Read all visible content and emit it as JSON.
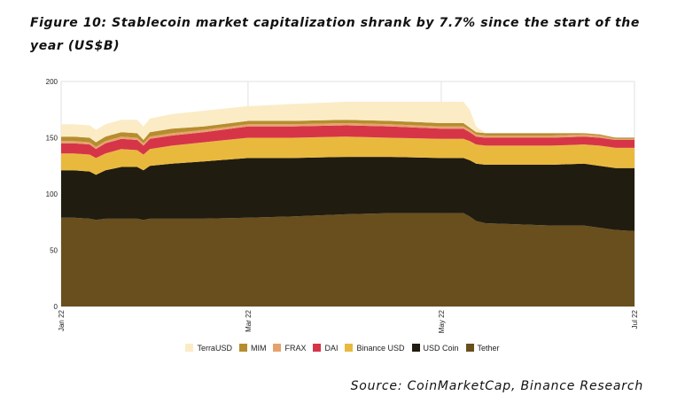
{
  "figure": {
    "title": "Figure 10: Stablecoin market capitalization shrank by 7.7% since the start of the year (US$B)",
    "source": "Source: CoinMarketCap, Binance Research"
  },
  "chart_data": {
    "type": "area",
    "stacked": true,
    "ylim": [
      0,
      200
    ],
    "yticks": [
      0,
      50,
      100,
      150,
      200
    ],
    "x": [
      "2022-01-01",
      "2022-01-05",
      "2022-01-10",
      "2022-01-12",
      "2022-01-15",
      "2022-01-20",
      "2022-01-25",
      "2022-01-27",
      "2022-01-29",
      "2022-02-05",
      "2022-02-15",
      "2022-03-01",
      "2022-03-15",
      "2022-04-01",
      "2022-04-15",
      "2022-05-01",
      "2022-05-05",
      "2022-05-08",
      "2022-05-10",
      "2022-05-12",
      "2022-05-15",
      "2022-05-25",
      "2022-06-05",
      "2022-06-15",
      "2022-06-20",
      "2022-06-25",
      "2022-07-01"
    ],
    "xticks": [
      {
        "date": "2022-01-01",
        "label": "Jan 22"
      },
      {
        "date": "2022-03-01",
        "label": "Mar 22"
      },
      {
        "date": "2022-05-01",
        "label": "May 22"
      },
      {
        "date": "2022-07-01",
        "label": "Jul 22"
      }
    ],
    "series": [
      {
        "name": "Tether",
        "color": "#694f1d",
        "values": [
          79,
          79,
          78,
          77,
          78,
          78,
          78,
          77,
          78,
          78,
          78,
          79,
          80,
          82,
          83,
          83,
          83,
          83,
          80,
          76,
          74,
          73,
          72,
          72,
          70,
          68,
          67
        ]
      },
      {
        "name": "USD Coin",
        "color": "#211c10",
        "values": [
          42,
          42,
          42,
          40,
          43,
          46,
          46,
          44,
          47,
          49,
          51,
          53,
          52,
          51,
          50,
          49,
          49,
          49,
          50,
          51,
          52,
          53,
          54,
          55,
          55,
          55,
          56
        ]
      },
      {
        "name": "Binance USD",
        "color": "#e9b93e",
        "values": [
          15,
          15,
          15,
          15,
          15,
          16,
          15,
          14,
          15,
          16,
          17,
          18,
          18,
          18,
          17,
          17,
          17,
          17,
          17,
          17,
          17,
          17,
          17,
          17,
          18,
          18,
          18
        ]
      },
      {
        "name": "DAI",
        "color": "#d63548",
        "values": [
          9,
          9,
          9,
          8,
          9,
          9,
          9,
          8,
          9,
          9,
          9,
          10,
          10,
          10,
          10,
          9,
          9,
          9,
          8,
          7,
          7,
          7,
          7,
          7,
          7,
          7,
          7
        ]
      },
      {
        "name": "FRAX",
        "color": "#e6a26c",
        "values": [
          2,
          2,
          2,
          2,
          2,
          2,
          2,
          2,
          2,
          2,
          2,
          2,
          2,
          2,
          2,
          2,
          2,
          2,
          2,
          2,
          2,
          2,
          2,
          2,
          2,
          1,
          1
        ]
      },
      {
        "name": "MIM",
        "color": "#b68d2e",
        "values": [
          4,
          4,
          4,
          4,
          4,
          4,
          4,
          3,
          4,
          4,
          3,
          3,
          3,
          3,
          3,
          3,
          3,
          3,
          2,
          2,
          2,
          2,
          2,
          1,
          1,
          1,
          1
        ]
      },
      {
        "name": "TerraUSD",
        "color": "#fbecc6",
        "values": [
          11,
          11,
          11,
          11,
          11,
          11,
          12,
          12,
          12,
          13,
          14,
          13,
          15,
          16,
          17,
          19,
          19,
          19,
          16,
          5,
          0,
          0,
          0,
          0,
          0,
          0,
          0
        ]
      }
    ],
    "legend_order": [
      "TerraUSD",
      "MIM",
      "FRAX",
      "DAI",
      "Binance USD",
      "USD Coin",
      "Tether"
    ],
    "legend_position": "bottom",
    "grid": true
  }
}
